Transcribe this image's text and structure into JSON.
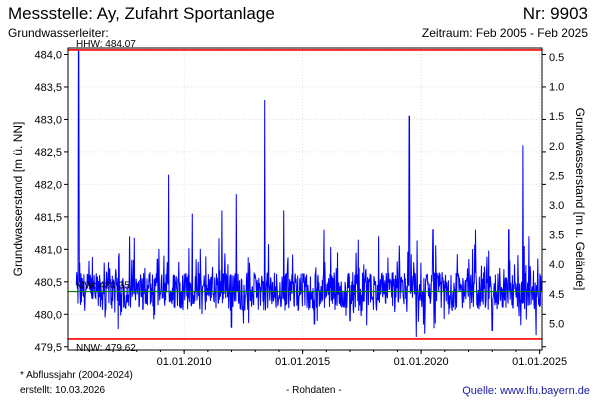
{
  "header": {
    "title": "Messstelle: Ay, Zufahrt Sportanlage",
    "nr": "Nr: 9903",
    "aquifer": "Grundwasserleiter:",
    "period": "Zeitraum: Feb 2005 - Feb 2025"
  },
  "footer": {
    "note": "* Abflussjahr (2004-2024)",
    "created": "erstellt:  10.03.2026",
    "type": "- Rohdaten -",
    "source": "Quelle: www.lfu.bayern.de"
  },
  "colors": {
    "series": "#0000ff",
    "hhw": "#ff0000",
    "nnw": "#ff0000",
    "mw": "#008000",
    "grid": "#cccccc"
  },
  "chart_data": {
    "type": "line",
    "ylabel": "Grundwasserstand [m ü. NN]",
    "ylabel_right": "Grundwasserstand [m u. Gelände]",
    "ylim": [
      479.45,
      484.1
    ],
    "xlim": [
      2005.1,
      2025.1
    ],
    "yticks": [
      "479,5",
      "480,0",
      "480,5",
      "481,0",
      "481,5",
      "482,0",
      "482,5",
      "483,0",
      "483,5",
      "484,0"
    ],
    "ytick_values": [
      479.5,
      480.0,
      480.5,
      481.0,
      481.5,
      482.0,
      482.5,
      483.0,
      483.5,
      484.0
    ],
    "yticks_right": [
      "0.5",
      "1.0",
      "1.5",
      "2.0",
      "2.5",
      "3.0",
      "3.5",
      "4.0",
      "4.5",
      "5.0"
    ],
    "xticks": [
      "01.01.2010",
      "01.01.2015",
      "01.01.2020",
      "01.01.2025"
    ],
    "xtick_values": [
      2010.0,
      2015.0,
      2020.0,
      2025.0
    ],
    "reference_lines": [
      {
        "label": "HHW: 484.07",
        "value": 484.07,
        "key": "hhw"
      },
      {
        "label": "MW: 480.35",
        "value": 480.35,
        "key": "mw"
      },
      {
        "label": "NNW: 479.62",
        "value": 479.62,
        "key": "nnw"
      }
    ],
    "baseline": 480.35,
    "spikes": [
      [
        2005.55,
        484.05
      ],
      [
        2007.7,
        481.2
      ],
      [
        2009.35,
        482.15
      ],
      [
        2010.35,
        481.55
      ],
      [
        2011.6,
        481.6
      ],
      [
        2012.2,
        481.85
      ],
      [
        2013.4,
        483.3
      ],
      [
        2014.2,
        481.6
      ],
      [
        2015.9,
        481.3
      ],
      [
        2017.35,
        481.15
      ],
      [
        2018.2,
        481.2
      ],
      [
        2019.5,
        483.05
      ],
      [
        2020.5,
        481.3
      ],
      [
        2022.3,
        481.3
      ],
      [
        2023.7,
        481.3
      ],
      [
        2024.3,
        482.6
      ],
      [
        2024.55,
        481.2
      ]
    ],
    "dips": [
      [
        2012.0,
        479.8
      ],
      [
        2015.5,
        479.85
      ],
      [
        2017.0,
        479.9
      ],
      [
        2019.8,
        479.65
      ],
      [
        2020.15,
        479.7
      ],
      [
        2023.0,
        479.75
      ],
      [
        2024.85,
        479.68
      ]
    ],
    "grid": true
  }
}
